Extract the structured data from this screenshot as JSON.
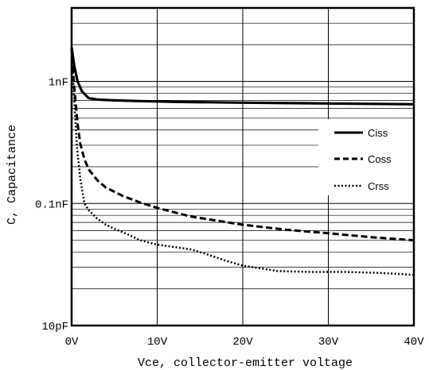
{
  "chart_data": {
    "type": "line",
    "title": "",
    "xlabel": "Vce, collector-emitter voltage",
    "ylabel": "C, Capacitance",
    "x_unit": "V",
    "xlim": [
      0,
      40
    ],
    "ylim_pF": [
      10,
      4000
    ],
    "y_scale": "log",
    "x_ticks": [
      {
        "value": 0,
        "label": "0V"
      },
      {
        "value": 10,
        "label": "10V"
      },
      {
        "value": 20,
        "label": "20V"
      },
      {
        "value": 30,
        "label": "30V"
      },
      {
        "value": 40,
        "label": "40V"
      }
    ],
    "y_ticks": [
      {
        "value_pF": 10,
        "label": "10pF"
      },
      {
        "value_pF": 100,
        "label": "0.1nF"
      },
      {
        "value_pF": 1000,
        "label": "1nF"
      }
    ],
    "grid": true,
    "legend_position": "right",
    "series": [
      {
        "name": "Ciss",
        "style": "solid",
        "x": [
          0,
          0.3,
          0.7,
          1.2,
          2,
          3,
          5,
          8,
          12,
          20,
          30,
          40
        ],
        "y_pF": [
          1900,
          1350,
          1000,
          830,
          730,
          710,
          700,
          690,
          680,
          670,
          660,
          650
        ]
      },
      {
        "name": "Coss",
        "style": "dashed",
        "x": [
          0,
          0.3,
          0.7,
          1,
          1.5,
          2,
          3,
          4,
          6,
          8,
          10,
          14,
          20,
          25,
          30,
          35,
          40
        ],
        "y_pF": [
          1900,
          900,
          450,
          310,
          230,
          190,
          155,
          135,
          115,
          102,
          92,
          78,
          67,
          61,
          57,
          53,
          50
        ]
      },
      {
        "name": "Crss",
        "style": "dotted",
        "x": [
          0,
          0.3,
          0.6,
          1,
          1.5,
          2,
          3,
          4,
          5,
          6,
          7,
          8,
          10,
          12,
          14,
          16,
          18,
          20,
          24,
          28,
          32,
          36,
          40
        ],
        "y_pF": [
          1900,
          700,
          300,
          160,
          100,
          88,
          75,
          67,
          62,
          58,
          54,
          50,
          46,
          44,
          42,
          38,
          34,
          31,
          28,
          27.5,
          27.5,
          27,
          26
        ]
      }
    ]
  }
}
